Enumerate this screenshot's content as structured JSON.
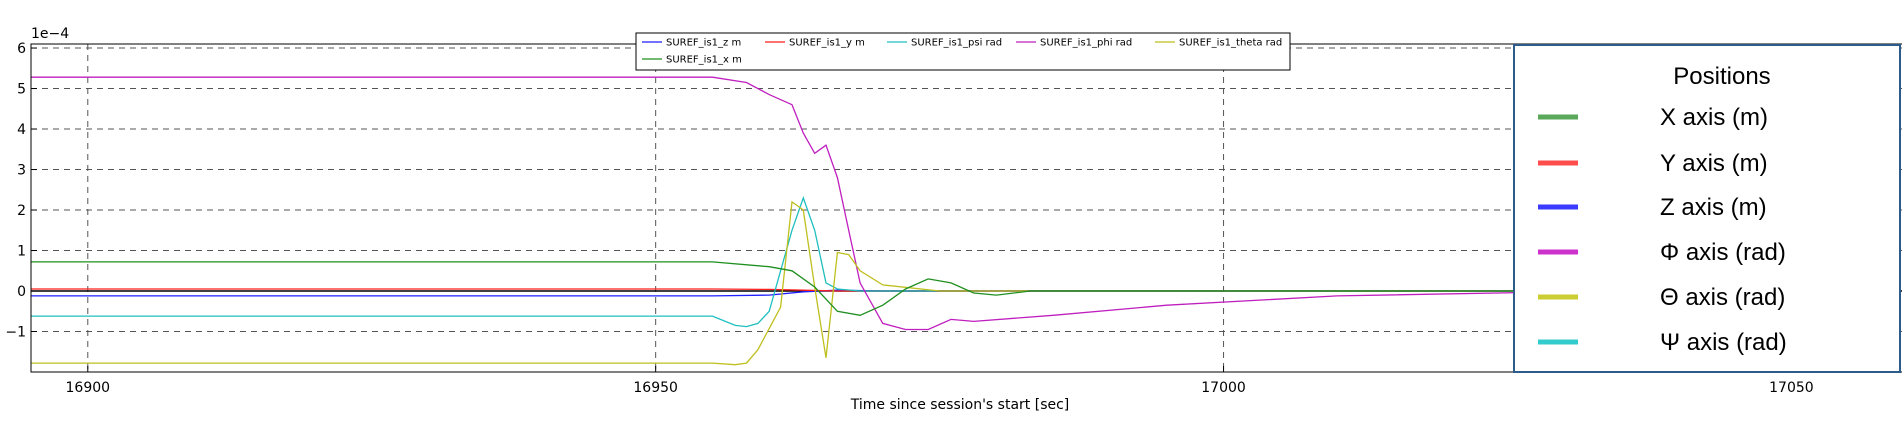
{
  "chart_data": {
    "type": "line",
    "xlabel": "Time since session's start [sec]",
    "ylabel": "",
    "xlim": [
      16895,
      17060
    ],
    "ylim": [
      -2.0,
      6.1
    ],
    "y_multiplier_label": "1e−4",
    "x_ticks": [
      16900,
      16950,
      17000,
      17050
    ],
    "x_tick_labels": [
      "16900",
      "16950",
      "17000",
      "17050"
    ],
    "y_ticks": [
      -1,
      0,
      1,
      2,
      3,
      4,
      5,
      6
    ],
    "y_tick_labels": [
      "−1",
      "0",
      "1",
      "2",
      "3",
      "4",
      "5",
      "6"
    ],
    "grid": true,
    "series": [
      {
        "name": "SUREF_is1_z m",
        "color": "#1f1fff",
        "x": [
          16895,
          16955,
          16960,
          16963,
          16966,
          16970,
          16980,
          17000,
          17040
        ],
        "y": [
          -0.12,
          -0.12,
          -0.1,
          -0.02,
          0.02,
          0.0,
          0.0,
          0.0,
          0.0
        ]
      },
      {
        "name": "SUREF_is1_y m",
        "color": "#ff1f1f",
        "x": [
          16895,
          16955,
          16960,
          16963,
          16966,
          16970,
          16980,
          17000,
          17040
        ],
        "y": [
          0.05,
          0.05,
          0.04,
          0.02,
          0.0,
          0.0,
          0.0,
          0.0,
          0.0
        ]
      },
      {
        "name": "SUREF_is1_psi rad",
        "color": "#1fbfbf",
        "x": [
          16895,
          16955,
          16957,
          16958,
          16959,
          16960,
          16961,
          16962,
          16963,
          16964,
          16965,
          16966,
          16968,
          16970,
          16975,
          16980,
          17040
        ],
        "y": [
          -0.62,
          -0.62,
          -0.85,
          -0.88,
          -0.8,
          -0.5,
          0.5,
          1.5,
          2.3,
          1.5,
          0.2,
          0.05,
          0.0,
          0.0,
          0.0,
          0.0,
          0.0
        ]
      },
      {
        "name": "SUREF_is1_phi rad",
        "color": "#bf1fbf",
        "x": [
          16895,
          16955,
          16958,
          16960,
          16962,
          16963,
          16964,
          16965,
          16966,
          16967,
          16968,
          16970,
          16972,
          16974,
          16976,
          16978,
          16985,
          16995,
          17010,
          17030,
          17040
        ],
        "y": [
          5.28,
          5.28,
          5.15,
          4.85,
          4.6,
          3.9,
          3.4,
          3.6,
          2.8,
          1.5,
          0.2,
          -0.8,
          -0.95,
          -0.95,
          -0.7,
          -0.75,
          -0.6,
          -0.35,
          -0.12,
          -0.02,
          -0.01
        ]
      },
      {
        "name": "SUREF_is1_theta rad",
        "color": "#bfbf1f",
        "x": [
          16895,
          16955,
          16957,
          16958,
          16959,
          16961,
          16962,
          16963,
          16964,
          16965,
          16966,
          16967,
          16968,
          16970,
          16975,
          16980,
          17040
        ],
        "y": [
          -1.78,
          -1.78,
          -1.82,
          -1.78,
          -1.45,
          -0.4,
          2.2,
          2.0,
          0.1,
          -1.65,
          0.95,
          0.9,
          0.5,
          0.15,
          0.0,
          0.0,
          0.0
        ]
      },
      {
        "name": "SUREF_is1_x m",
        "color": "#1f8f1f",
        "x": [
          16895,
          16955,
          16960,
          16962,
          16964,
          16966,
          16968,
          16970,
          16972,
          16974,
          16976,
          16978,
          16980,
          16983,
          17000,
          17040
        ],
        "y": [
          0.72,
          0.72,
          0.6,
          0.5,
          0.1,
          -0.5,
          -0.6,
          -0.35,
          0.05,
          0.3,
          0.2,
          -0.05,
          -0.1,
          0.0,
          0.0,
          0.0
        ]
      }
    ],
    "legend_small": {
      "placement": "top-center",
      "rows": [
        [
          "SUREF_is1_z m",
          "SUREF_is1_y m",
          "SUREF_is1_psi rad",
          "SUREF_is1_phi rad",
          "SUREF_is1_theta rad"
        ],
        [
          "SUREF_is1_x m"
        ]
      ]
    },
    "legend_overlay": {
      "placement": "right",
      "title": "Positions",
      "entries": [
        {
          "label": "X axis (m)",
          "color": "#5aa85a"
        },
        {
          "label": "Y axis (m)",
          "color": "#ff4d4d"
        },
        {
          "label": "Z axis (m)",
          "color": "#3b3bff"
        },
        {
          "label": "Φ axis (rad)",
          "color": "#cc33cc"
        },
        {
          "label": "Θ axis (rad)",
          "color": "#cccc33"
        },
        {
          "label": "Ψ axis (rad)",
          "color": "#33cccc"
        }
      ]
    }
  }
}
